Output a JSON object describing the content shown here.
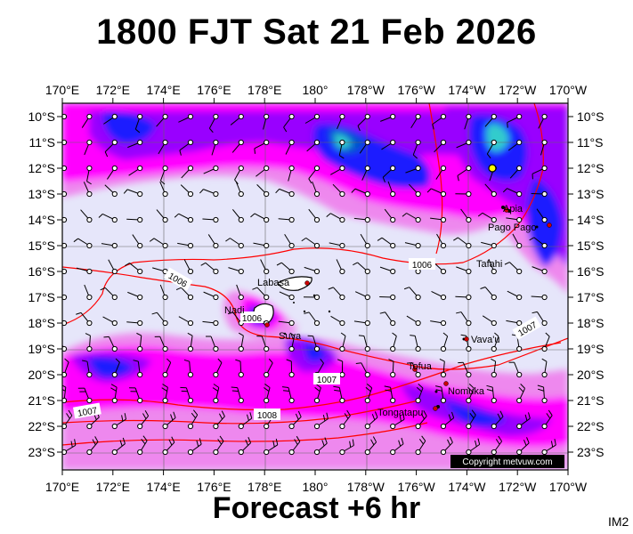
{
  "title": "1800 FJT Sat 21 Feb 2026",
  "footer": "Forecast +6 hr",
  "image_label": "IM2",
  "copyright": "Copyright metvuw.com",
  "longitude_labels": [
    "170°E",
    "172°E",
    "174°E",
    "176°E",
    "178°E",
    "180°",
    "178°W",
    "176°W",
    "174°W",
    "172°W",
    "170°W"
  ],
  "latitude_labels": [
    "10°S",
    "11°S",
    "12°S",
    "13°S",
    "14°S",
    "15°S",
    "16°S",
    "17°S",
    "18°S",
    "19°S",
    "20°S",
    "21°S",
    "22°S",
    "23°S"
  ],
  "places": [
    {
      "name": "Apia",
      "lon": -171.8,
      "lat": -13.8
    },
    {
      "name": "Pago Pago",
      "lon": -170.7,
      "lat": -14.3
    },
    {
      "name": "Tafahi",
      "lon": -173.7,
      "lat": -15.9
    },
    {
      "name": "Labasa",
      "lon": 179.4,
      "lat": -16.4
    },
    {
      "name": "Nadi",
      "lon": 177.4,
      "lat": -17.8
    },
    {
      "name": "Suva",
      "lon": 178.4,
      "lat": -18.1
    },
    {
      "name": "Vava'u",
      "lon": -174.0,
      "lat": -18.6
    },
    {
      "name": "Tofua",
      "lon": -175.1,
      "lat": -19.7
    },
    {
      "name": "Nomuka",
      "lon": -174.8,
      "lat": -20.3
    },
    {
      "name": "Tongatapu",
      "lon": -175.2,
      "lat": -21.2
    }
  ],
  "isobar_labels": [
    "1006",
    "1006",
    "1006",
    "1007",
    "1007",
    "1007",
    "1008"
  ],
  "colors": {
    "background": "#e6e6fa",
    "light_magenta": "#ee88ee",
    "magenta": "#ff00ff",
    "purple": "#9900ff",
    "blue": "#1a1aff",
    "dark_blue": "#0055cc",
    "cyan": "#33cccc",
    "isobar": "#ff0000",
    "land": "#000000"
  }
}
